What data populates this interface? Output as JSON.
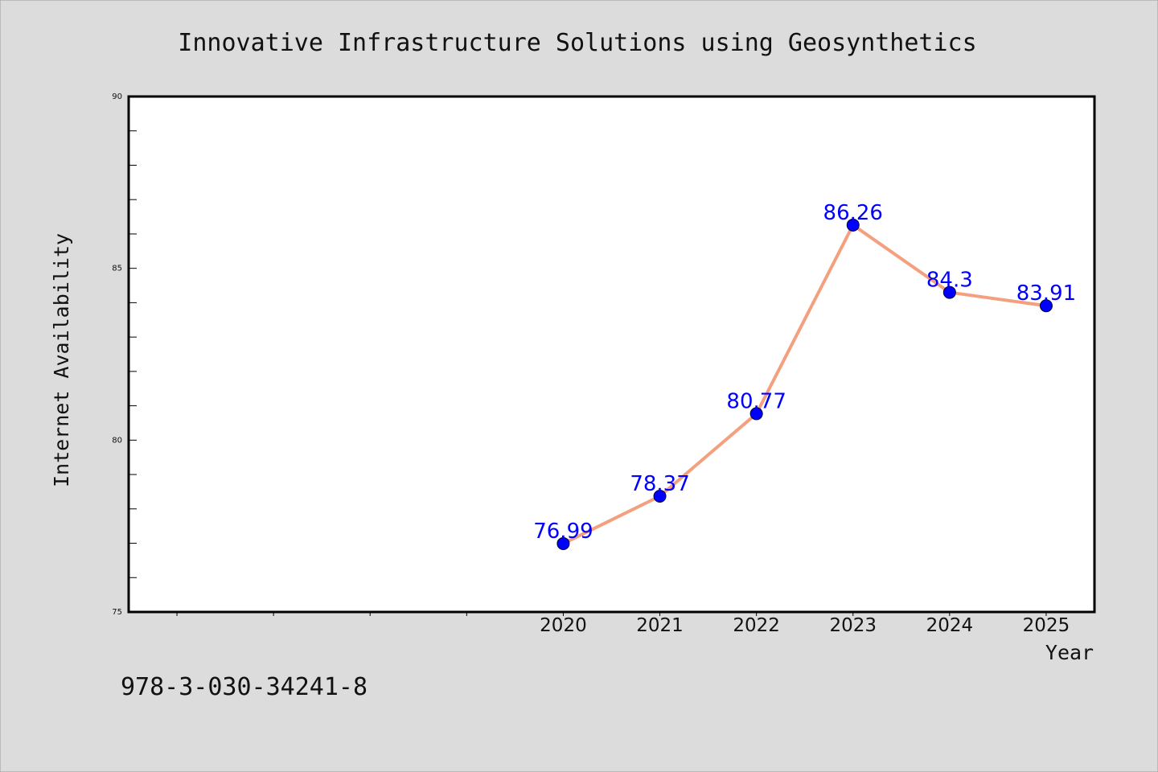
{
  "colors": {
    "background": "#dcdcdc",
    "plot_background": "#ffffff",
    "line": "#f4a07f",
    "marker": "#0000ff",
    "data_label": "#0000ff",
    "text": "#111111"
  },
  "footer_code": "978-3-030-34241-8",
  "chart_data": {
    "type": "line",
    "title": "Innovative Infrastructure Solutions using Geosynthetics",
    "xlabel": "Year",
    "ylabel": "Internet Availability",
    "x": [
      "2020",
      "2021",
      "2022",
      "2023",
      "2024",
      "2025"
    ],
    "series": [
      {
        "values": [
          76.99,
          78.37,
          80.77,
          86.26,
          84.3,
          83.91
        ],
        "labels": [
          "76.99",
          "78.37",
          "80.77",
          "86.26",
          "84.3",
          "83.91"
        ]
      }
    ],
    "ylim": [
      75,
      90
    ],
    "yticks": [
      "75",
      "80",
      "85",
      "90"
    ],
    "y_minor_step": 1,
    "x_slots": 10,
    "x_first_slot": 4,
    "grid": false,
    "legend": "none"
  }
}
